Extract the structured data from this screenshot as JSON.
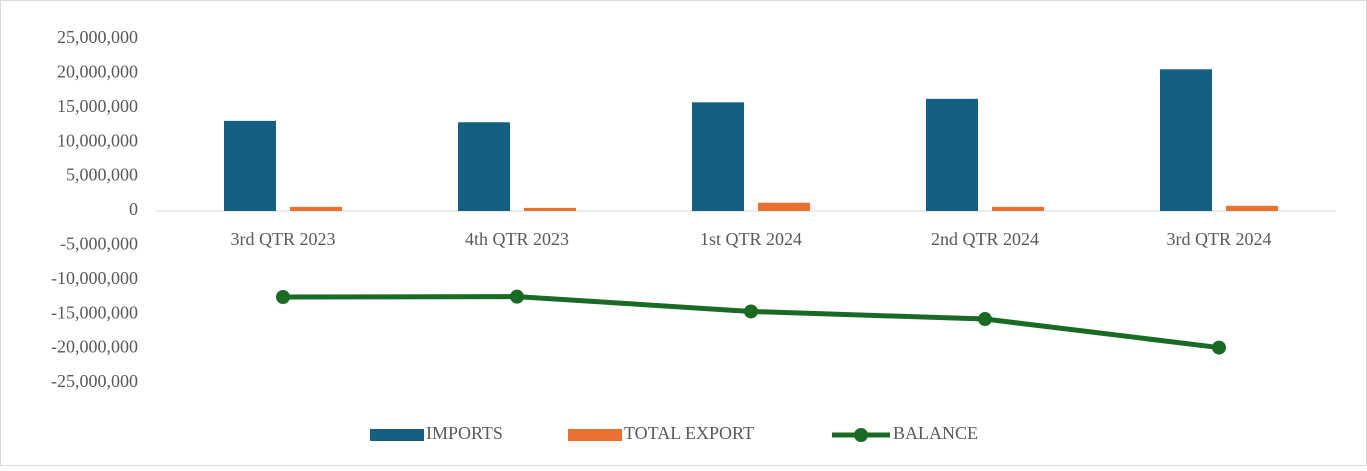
{
  "chart_data": {
    "type": "bar",
    "categories": [
      "3rd QTR 2023",
      "4th QTR 2023",
      "1st QTR 2024",
      "2nd QTR 2024",
      "3rd QTR 2024"
    ],
    "series": [
      {
        "name": "IMPORTS",
        "color": "#156082",
        "values": [
          13100000,
          12900000,
          15800000,
          16300000,
          20600000
        ]
      },
      {
        "name": "TOTAL EXPORT",
        "color": "#e97132",
        "values": [
          600000,
          450000,
          1200000,
          600000,
          750000
        ]
      },
      {
        "name": "BALANCE",
        "color": "#196b24",
        "type": "line",
        "values": [
          -12500000,
          -12450000,
          -14600000,
          -15700000,
          -19850000
        ]
      }
    ],
    "ylim": [
      -25000000,
      25000000
    ],
    "yticks": [
      {
        "value": -25000000,
        "label": "-25,000,000"
      },
      {
        "value": -20000000,
        "label": "-20,000,000"
      },
      {
        "value": -15000000,
        "label": "-15,000,000"
      },
      {
        "value": -10000000,
        "label": "-10,000,000"
      },
      {
        "value": -5000000,
        "label": "-5,000,000"
      },
      0,
      {
        "value": 5000000,
        "label": "5,000,000"
      },
      {
        "value": 10000000,
        "label": "10,000,000"
      },
      {
        "value": 15000000,
        "label": "15,000,000"
      },
      {
        "value": 20000000,
        "label": "20,000,000"
      },
      {
        "value": 25000000,
        "label": "25,000,000"
      }
    ],
    "grid": false,
    "legend": "bottom"
  }
}
